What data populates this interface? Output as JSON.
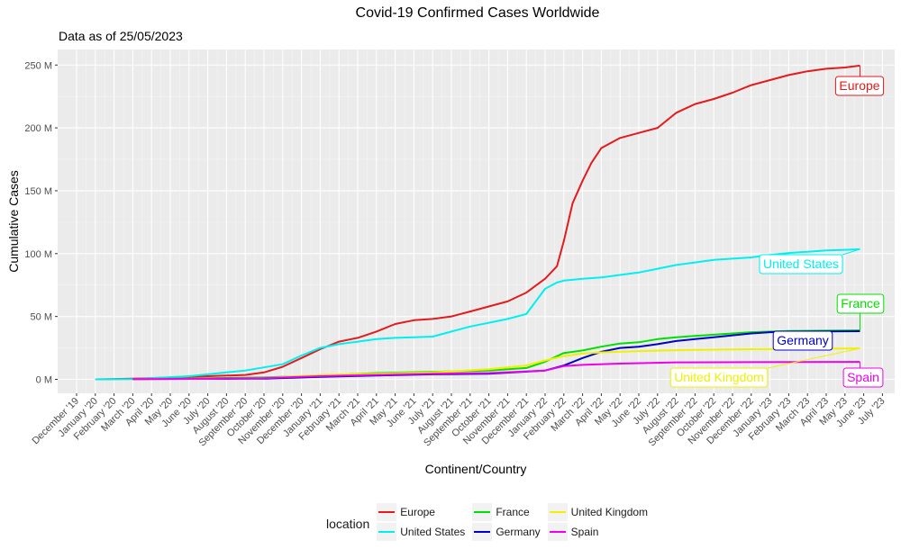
{
  "chart_data": {
    "type": "line",
    "title": "Covid-19 Confirmed Cases Worldwide",
    "subtitle": "Data as of 25/05/2023",
    "xlabel": "Continent/Country",
    "ylabel": "Cumulative Cases",
    "ylim": [
      -20,
      262
    ],
    "y_ticks": [
      0,
      50,
      100,
      150,
      200,
      250
    ],
    "y_tick_labels": [
      "0 M",
      "50 M",
      "100 M",
      "150 M",
      "200 M",
      "250 M"
    ],
    "x_tick_labels": [
      "December '19",
      "January '20",
      "February '20",
      "March '20",
      "April '20",
      "May '20",
      "June '20",
      "July '20",
      "August '20",
      "September '20",
      "October '20",
      "November '20",
      "December '20",
      "January '21",
      "February '21",
      "March '21",
      "April '21",
      "May '21",
      "June '21",
      "July '21",
      "August '21",
      "September '21",
      "October '21",
      "November '21",
      "December '21",
      "January '22",
      "February '22",
      "March '22",
      "April '22",
      "May '22",
      "June '22",
      "July '22",
      "August '22",
      "September '22",
      "October '22",
      "November '22",
      "December '22",
      "January '23",
      "February '23",
      "March '23",
      "April '23",
      "May '23",
      "June '23",
      "July '23"
    ],
    "grid": true,
    "legend_title": "location",
    "legend_position": "bottom",
    "series": [
      {
        "name": "Europe",
        "color": "#e41a1c",
        "x": [
          "2020-01",
          "2020-03",
          "2020-06",
          "2020-09",
          "2020-10",
          "2020-11",
          "2020-12",
          "2021-01",
          "2021-02",
          "2021-03",
          "2021-04",
          "2021-05",
          "2021-06",
          "2021-07",
          "2021-08",
          "2021-09",
          "2021-10",
          "2021-11",
          "2021-12",
          "2022-01",
          "2022-01-20",
          "2022-02",
          "2022-02-15",
          "2022-03",
          "2022-03-15",
          "2022-04",
          "2022-05",
          "2022-06",
          "2022-07",
          "2022-08",
          "2022-09",
          "2022-10",
          "2022-11",
          "2022-12",
          "2023-01",
          "2023-02",
          "2023-03",
          "2023-04",
          "2023-05",
          "2023-05-25"
        ],
        "values": [
          0,
          0.5,
          2,
          3.5,
          5.5,
          10,
          17,
          24,
          30,
          33,
          38,
          44,
          47,
          48,
          50,
          54,
          58,
          62,
          69,
          80,
          90,
          110,
          140,
          158,
          172,
          184,
          192,
          196,
          200,
          212,
          219,
          223,
          228,
          234,
          238,
          242,
          245,
          247,
          248,
          249.5
        ]
      },
      {
        "name": "United States",
        "color": "#00f0f0",
        "x": [
          "2020-01",
          "2020-03",
          "2020-06",
          "2020-09",
          "2020-11",
          "2020-12",
          "2021-01",
          "2021-02",
          "2021-03",
          "2021-04",
          "2021-05",
          "2021-06",
          "2021-07",
          "2021-08",
          "2021-09",
          "2021-10",
          "2021-11",
          "2021-12",
          "2022-01",
          "2022-01-20",
          "2022-02",
          "2022-03",
          "2022-04",
          "2022-05",
          "2022-06",
          "2022-07",
          "2022-08",
          "2022-09",
          "2022-10",
          "2022-11",
          "2022-12",
          "2023-01",
          "2023-02",
          "2023-03",
          "2023-04",
          "2023-05",
          "2023-05-25"
        ],
        "values": [
          0,
          0.2,
          2.5,
          7,
          12,
          19,
          25,
          28,
          30,
          32,
          33,
          33.5,
          34,
          38,
          42,
          45,
          48,
          52,
          72,
          77,
          78.5,
          80,
          81,
          83,
          85,
          88,
          91,
          93,
          95,
          96,
          97,
          99,
          100.5,
          101.5,
          102.5,
          103,
          103.5
        ]
      },
      {
        "name": "France",
        "color": "#00e000",
        "x": [
          "2020-03",
          "2020-10",
          "2021-01",
          "2021-04",
          "2021-07",
          "2021-10",
          "2021-12",
          "2022-01",
          "2022-02",
          "2022-03",
          "2022-04",
          "2022-05",
          "2022-06",
          "2022-07",
          "2022-08",
          "2022-10",
          "2022-12",
          "2023-02",
          "2023-05-25"
        ],
        "values": [
          0.2,
          1.5,
          3,
          5,
          6,
          7,
          9,
          14,
          21,
          23,
          26,
          28.5,
          29.5,
          32,
          33.5,
          35.5,
          37.5,
          38.5,
          39
        ]
      },
      {
        "name": "Germany",
        "color": "#0000cd",
        "x": [
          "2020-03",
          "2020-10",
          "2021-01",
          "2021-04",
          "2021-07",
          "2021-10",
          "2022-01",
          "2022-02",
          "2022-03",
          "2022-04",
          "2022-05",
          "2022-06",
          "2022-07",
          "2022-08",
          "2022-09",
          "2022-10",
          "2022-11",
          "2022-12",
          "2023-01",
          "2023-02",
          "2023-05-25"
        ],
        "values": [
          0.2,
          0.5,
          2,
          3,
          4,
          4.5,
          7,
          11,
          17,
          22,
          25,
          26,
          28,
          30.5,
          32,
          33.5,
          35,
          36.5,
          37.5,
          38,
          38.3
        ]
      },
      {
        "name": "United Kingdom",
        "color": "#f0f000",
        "x": [
          "2020-03",
          "2020-10",
          "2021-01",
          "2021-04",
          "2021-07",
          "2021-10",
          "2021-12",
          "2022-01",
          "2022-02",
          "2022-03",
          "2022-04",
          "2022-06",
          "2022-09",
          "2022-12",
          "2023-03",
          "2023-05-25"
        ],
        "values": [
          0.1,
          1,
          3.5,
          4.5,
          5.5,
          8,
          11,
          15,
          18.5,
          20.5,
          21.5,
          22.5,
          23.5,
          24,
          24.3,
          24.6
        ]
      },
      {
        "name": "Spain",
        "color": "#ee00ee",
        "x": [
          "2020-03",
          "2020-10",
          "2021-01",
          "2021-04",
          "2021-07",
          "2021-10",
          "2022-01",
          "2022-02",
          "2022-03",
          "2022-05",
          "2022-08",
          "2022-12",
          "2023-05-25"
        ],
        "values": [
          0.1,
          1,
          2.5,
          3.5,
          4.5,
          5,
          7,
          10.5,
          11.5,
          12.5,
          13.5,
          13.7,
          13.9
        ]
      }
    ],
    "annotations": [
      {
        "text": "Europe",
        "series": "Europe",
        "color": "#e41a1c"
      },
      {
        "text": "United States",
        "series": "United States",
        "color": "#00f0f0"
      },
      {
        "text": "France",
        "series": "France",
        "color": "#00e000"
      },
      {
        "text": "Germany",
        "series": "Germany",
        "color": "#0000cd"
      },
      {
        "text": "United Kingdom",
        "series": "United Kingdom",
        "color": "#f0f000"
      },
      {
        "text": "Spain",
        "series": "Spain",
        "color": "#ee00ee"
      }
    ]
  }
}
